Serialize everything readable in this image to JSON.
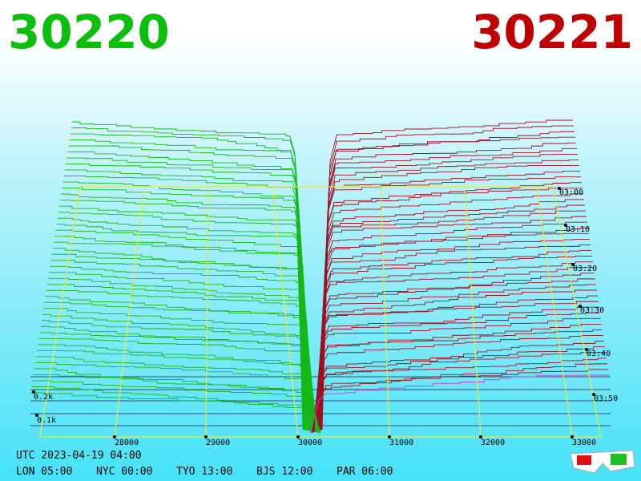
{
  "header": {
    "bid": "30220",
    "ask": "30221"
  },
  "price_axis": [
    "28000",
    "29000",
    "30000",
    "31000",
    "32000",
    "33000"
  ],
  "time_axis": [
    "03:00",
    "03:10",
    "03:20",
    "03:30",
    "03:40",
    "03:50"
  ],
  "depth_axis": [
    "0.2k",
    "0.1k"
  ],
  "footer": {
    "utc": "UTC 2023-04-19 04:00",
    "clocks": [
      "LON 05:00",
      "NYC 00:00",
      "TYO 13:00",
      "BJS 12:00",
      "PAR 06:00"
    ]
  }
}
